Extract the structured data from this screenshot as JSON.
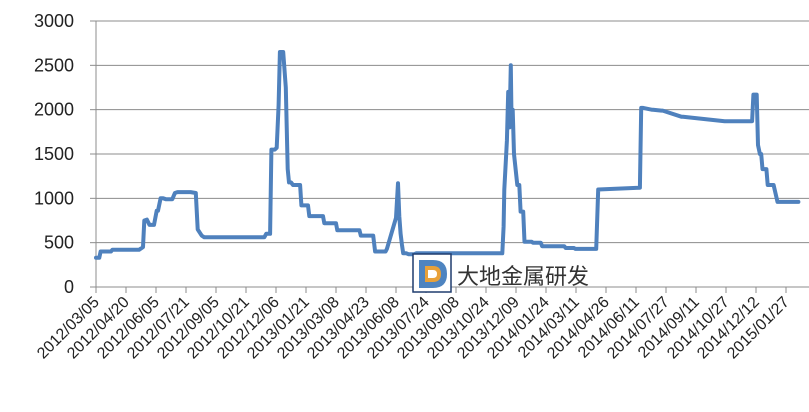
{
  "chart_data": {
    "type": "line",
    "title": "",
    "xlabel": "",
    "ylabel": "",
    "ylim": [
      0,
      3000
    ],
    "yticks": [
      "0",
      "500",
      "1000",
      "1500",
      "2000",
      "2500",
      "3000"
    ],
    "grid": "horizontal",
    "legend": "none",
    "x_ticks": [
      "2012/03/05",
      "2012/04/20",
      "2012/06/05",
      "2012/07/21",
      "2012/09/05",
      "2012/10/21",
      "2012/12/06",
      "2013/01/21",
      "2013/03/08",
      "2013/04/23",
      "2013/06/08",
      "2013/07/24",
      "2013/09/08",
      "2013/10/24",
      "2013/12/09",
      "2014/01/24",
      "2014/03/11",
      "2014/04/26",
      "2014/06/11",
      "2014/07/27",
      "2014/09/11",
      "2014/10/27",
      "2014/12/12",
      "2015/01/27"
    ],
    "series": [
      {
        "color": "#4f81bd",
        "x": [
          "2012/03/05",
          "2012/03/10",
          "2012/03/12",
          "2012/03/28",
          "2012/03/30",
          "2012/05/10",
          "2012/05/16",
          "2012/05/18",
          "2012/05/22",
          "2012/05/26",
          "2012/06/02",
          "2012/06/06",
          "2012/06/08",
          "2012/06/12",
          "2012/06/16",
          "2012/06/20",
          "2012/06/30",
          "2012/07/04",
          "2012/07/08",
          "2012/07/12",
          "2012/07/28",
          "2012/08/05",
          "2012/08/08",
          "2012/08/14",
          "2012/08/18",
          "2012/11/18",
          "2012/11/21",
          "2012/11/27",
          "2012/11/29",
          "2012/12/04",
          "2012/12/07",
          "2012/12/10",
          "2012/12/12",
          "2012/12/17",
          "2012/12/21",
          "2012/12/24",
          "2012/12/26",
          "2012/12/29",
          "2013/01/01",
          "2013/01/12",
          "2013/01/14",
          "2013/01/24",
          "2013/01/26",
          "2013/01/31",
          "2013/02/02",
          "2013/02/16",
          "2013/02/18",
          "2013/03/08",
          "2013/03/10",
          "2013/04/13",
          "2013/04/15",
          "2013/05/04",
          "2013/05/07",
          "2013/05/23",
          "2013/05/25",
          "2013/06/08",
          "2013/06/11",
          "2013/06/13",
          "2013/06/15",
          "2013/06/17",
          "2013/06/19",
          "2013/06/24",
          "2013/06/27",
          "2013/07/06",
          "2013/07/09",
          "2013/11/18",
          "2013/11/20",
          "2013/11/21",
          "2013/11/24",
          "2013/11/25",
          "2013/11/27",
          "2013/11/29",
          "2013/12/01",
          "2013/12/02",
          "2013/12/04",
          "2013/12/06",
          "2013/12/11",
          "2013/12/14",
          "2013/12/16",
          "2013/12/20",
          "2013/12/22",
          "2014/01/02",
          "2014/01/04",
          "2014/01/16",
          "2014/01/18",
          "2014/02/21",
          "2014/02/23",
          "2014/03/08",
          "2014/03/10",
          "2014/04/11",
          "2014/04/14",
          "2014/06/17",
          "2014/06/19",
          "2014/06/22",
          "2014/07/05",
          "2014/07/07",
          "2014/07/20",
          "2014/07/22",
          "2014/08/20",
          "2014/08/22",
          "2014/10/25",
          "2014/10/27",
          "2014/12/06",
          "2014/12/08",
          "2014/12/13",
          "2014/12/15",
          "2014/12/18",
          "2014/12/20",
          "2014/12/22",
          "2014/12/28",
          "2014/12/30",
          "2015/01/08",
          "2015/01/14",
          "2015/01/16",
          "2015/02/15"
        ],
        "y": [
          330,
          330,
          400,
          400,
          420,
          420,
          450,
          750,
          760,
          700,
          700,
          860,
          860,
          1000,
          1000,
          990,
          990,
          1060,
          1070,
          1070,
          1070,
          1060,
          650,
          580,
          560,
          560,
          600,
          600,
          1550,
          1550,
          1570,
          2050,
          2650,
          2650,
          2250,
          1330,
          1180,
          1180,
          1150,
          1150,
          920,
          920,
          800,
          800,
          800,
          800,
          720,
          720,
          640,
          640,
          580,
          580,
          400,
          400,
          430,
          780,
          1170,
          800,
          600,
          480,
          380,
          380,
          370,
          370,
          380,
          380,
          680,
          1100,
          1500,
          1650,
          2200,
          1800,
          2500,
          2000,
          2000,
          1500,
          1150,
          1150,
          850,
          850,
          510,
          510,
          500,
          500,
          460,
          460,
          440,
          440,
          430,
          430,
          1100,
          1120,
          2020,
          2020,
          2000,
          2000,
          1990,
          1990,
          1920,
          1920,
          1870,
          1870,
          1870,
          2170,
          2170,
          1600,
          1500,
          1500,
          1330,
          1330,
          1150,
          1150,
          960,
          960,
          960
        ]
      }
    ]
  },
  "watermark": {
    "text": "大地金属研发",
    "logo_icon": "company-logo-icon",
    "logo_colors": [
      "#2f6fb5",
      "#e8a13a",
      "#1f3c6e"
    ]
  }
}
